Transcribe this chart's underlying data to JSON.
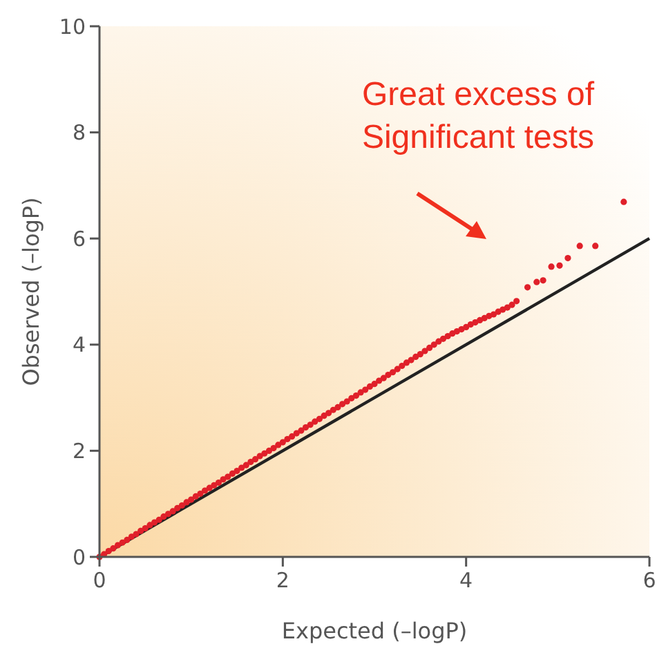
{
  "chart_data": {
    "type": "scatter",
    "xlabel": "Expected (–logP)",
    "ylabel": "Observed (–logP)",
    "xlim": [
      0,
      6
    ],
    "ylim": [
      0,
      10
    ],
    "xticks": [
      0,
      2,
      4,
      6
    ],
    "yticks": [
      0,
      2,
      4,
      6,
      8,
      10
    ],
    "grid": false,
    "annotations": [
      "Great excess of\nSignificant tests"
    ],
    "series": [
      {
        "type": "line",
        "color": "#222222",
        "x": [
          0,
          6
        ],
        "values": [
          0,
          6
        ]
      },
      {
        "marker": "circle",
        "color": "#e0202a",
        "x": [
          0,
          0.05,
          0.1,
          0.15,
          0.2,
          0.25,
          0.3,
          0.35,
          0.4,
          0.45,
          0.5,
          0.55,
          0.6,
          0.65,
          0.7,
          0.75,
          0.8,
          0.85,
          0.9,
          0.95,
          1.0,
          1.05,
          1.1,
          1.15,
          1.2,
          1.25,
          1.3,
          1.35,
          1.4,
          1.45,
          1.5,
          1.55,
          1.6,
          1.65,
          1.7,
          1.75,
          1.8,
          1.85,
          1.9,
          1.95,
          2.0,
          2.05,
          2.1,
          2.15,
          2.2,
          2.25,
          2.3,
          2.35,
          2.4,
          2.45,
          2.5,
          2.55,
          2.6,
          2.65,
          2.7,
          2.75,
          2.8,
          2.85,
          2.9,
          2.95,
          3.0,
          3.05,
          3.1,
          3.15,
          3.2,
          3.25,
          3.3,
          3.35,
          3.4,
          3.45,
          3.5,
          3.55,
          3.6,
          3.65,
          3.7,
          3.75,
          3.8,
          3.85,
          3.9,
          3.95,
          4.0,
          4.05,
          4.1,
          4.15,
          4.2,
          4.25,
          4.3,
          4.35,
          4.4,
          4.45,
          4.5,
          4.55,
          4.67,
          4.77,
          4.84,
          4.93,
          5.02,
          5.11,
          5.24,
          5.41,
          5.72
        ],
        "values": [
          0,
          0.05,
          0.11,
          0.16,
          0.22,
          0.27,
          0.32,
          0.38,
          0.43,
          0.49,
          0.54,
          0.6,
          0.65,
          0.7,
          0.76,
          0.81,
          0.86,
          0.92,
          0.97,
          1.03,
          1.08,
          1.14,
          1.19,
          1.25,
          1.3,
          1.35,
          1.4,
          1.46,
          1.51,
          1.57,
          1.62,
          1.68,
          1.73,
          1.79,
          1.84,
          1.9,
          1.95,
          2.0,
          2.05,
          2.11,
          2.16,
          2.22,
          2.27,
          2.33,
          2.38,
          2.44,
          2.49,
          2.55,
          2.6,
          2.66,
          2.71,
          2.77,
          2.82,
          2.88,
          2.93,
          2.99,
          3.04,
          3.1,
          3.15,
          3.21,
          3.26,
          3.32,
          3.37,
          3.43,
          3.48,
          3.54,
          3.6,
          3.66,
          3.71,
          3.77,
          3.82,
          3.88,
          3.94,
          4.0,
          4.06,
          4.11,
          4.16,
          4.21,
          4.25,
          4.29,
          4.33,
          4.38,
          4.42,
          4.46,
          4.5,
          4.54,
          4.57,
          4.62,
          4.66,
          4.7,
          4.75,
          4.82,
          5.08,
          5.18,
          5.21,
          5.47,
          5.49,
          5.63,
          5.86,
          5.86,
          6.69
        ]
      }
    ]
  }
}
